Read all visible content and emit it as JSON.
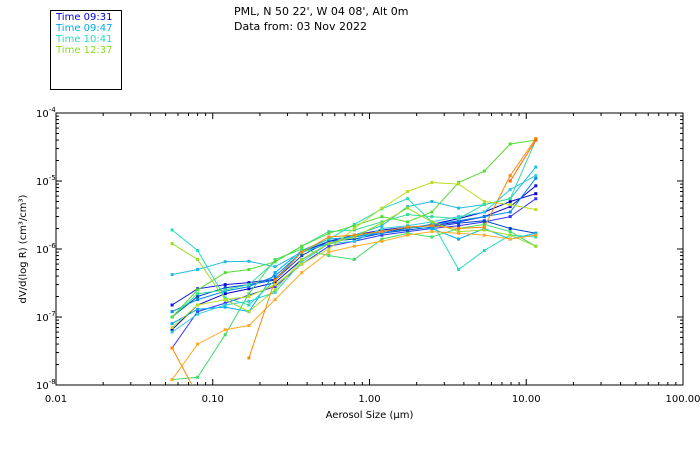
{
  "header": {
    "location": "PML, N 50 22', W 04 08', Alt 0m",
    "date": "Data from: 03 Nov 2022"
  },
  "legend": [
    {
      "label": "Time 09:31",
      "color": "#0000dd"
    },
    {
      "label": "Time 09:47",
      "color": "#00aaee"
    },
    {
      "label": "Time 10:41",
      "color": "#22ddbb"
    },
    {
      "label": "Time 12:37",
      "color": "#88dd22"
    }
  ],
  "chart_data": {
    "type": "line",
    "xlabel": "Aerosol Size (µm)",
    "ylabel": "dV/d(log R) (cm³/cm³)",
    "xscale": "log",
    "yscale": "log",
    "xlim": [
      0.01,
      100
    ],
    "ylim": [
      1e-08,
      0.0001
    ],
    "xticks": [
      {
        "value": 0.01,
        "label": "0.01"
      },
      {
        "value": 0.1,
        "label": "0.10"
      },
      {
        "value": 1,
        "label": "1.00"
      },
      {
        "value": 10,
        "label": "10.00"
      },
      {
        "value": 100,
        "label": "100.00"
      }
    ],
    "yticks": [
      {
        "value": 1e-08,
        "base": "10",
        "exp": "-8"
      },
      {
        "value": 1e-07,
        "base": "10",
        "exp": "-7"
      },
      {
        "value": 1e-06,
        "base": "10",
        "exp": "-6"
      },
      {
        "value": 1e-05,
        "base": "10",
        "exp": "-5"
      },
      {
        "value": 0.0001,
        "base": "10",
        "exp": "-4"
      }
    ],
    "x": [
      0.055,
      0.08,
      0.12,
      0.17,
      0.25,
      0.37,
      0.55,
      0.8,
      1.2,
      1.75,
      2.5,
      3.7,
      5.4,
      7.9,
      11.5
    ],
    "series": [
      {
        "color": "#0000cc",
        "values": [
          6.5e-08,
          1.5e-07,
          2.2e-07,
          2.6e-07,
          3.2e-07,
          7e-07,
          1.2e-06,
          1.5e-06,
          1.8e-06,
          2e-06,
          2.3e-06,
          2.8e-06,
          3.5e-06,
          5e-06,
          6.5e-06
        ]
      },
      {
        "color": "#1111dd",
        "values": [
          1.5e-07,
          2.6e-07,
          3e-07,
          3.2e-07,
          3.6e-07,
          9e-07,
          1.3e-06,
          1.6e-06,
          1.9e-06,
          2.1e-06,
          2.2e-06,
          2.5e-06,
          3e-06,
          4.2e-06,
          8.5e-06
        ]
      },
      {
        "color": "#3333ff",
        "values": [
          3.5e-08,
          1.2e-07,
          1.6e-07,
          2.1e-07,
          2.8e-07,
          6e-07,
          1.1e-06,
          1.3e-06,
          1.6e-06,
          1.8e-06,
          2e-06,
          2.2e-06,
          2.5e-06,
          3e-06,
          5.5e-06
        ]
      },
      {
        "color": "#0044cc",
        "values": [
          1e-07,
          2e-07,
          2.7e-07,
          3e-07,
          3.5e-07,
          8e-07,
          1.3e-06,
          1.4e-06,
          1.7e-06,
          1.9e-06,
          2.1e-06,
          2.4e-06,
          2.6e-06,
          2e-06,
          1.7e-06
        ]
      },
      {
        "color": "#0088ee",
        "values": [
          1.2e-07,
          1.8e-07,
          2.4e-07,
          2.8e-07,
          4e-07,
          9e-07,
          1.2e-06,
          1.5e-06,
          1.7e-06,
          2e-06,
          2.3e-06,
          2.6e-06,
          3e-06,
          3.5e-06,
          1.1e-05
        ]
      },
      {
        "color": "#00aaee",
        "values": [
          8e-08,
          1.3e-07,
          1.4e-07,
          1.2e-07,
          4.5e-07,
          9.5e-07,
          1.4e-06,
          1.5e-06,
          1.8e-06,
          2.1e-06,
          2e-06,
          1.4e-06,
          2e-06,
          1.4e-06,
          1.7e-06
        ]
      },
      {
        "color": "#22bbdd",
        "values": [
          4.2e-07,
          5e-07,
          6.5e-07,
          6.6e-07,
          5.5e-07,
          9e-07,
          1.2e-06,
          1.6e-06,
          2.2e-06,
          4.2e-06,
          5e-06,
          4e-06,
          4.5e-06,
          5.5e-06,
          1.6e-05
        ]
      },
      {
        "color": "#33ccdd",
        "values": [
          6e-08,
          1.1e-07,
          1.5e-07,
          1.7e-07,
          2.3e-07,
          6.5e-07,
          1.2e-06,
          1.3e-06,
          2e-06,
          2.2e-06,
          2.5e-06,
          3e-06,
          3.5e-06,
          7.5e-06,
          1.2e-05
        ]
      },
      {
        "color": "#22ddbb",
        "values": [
          1.9e-06,
          9.5e-07,
          1.9e-07,
          1.5e-07,
          3.5e-07,
          9e-07,
          1.4e-06,
          2.3e-06,
          3.9e-06,
          5.5e-06,
          2.5e-06,
          5e-07,
          9.5e-07,
          1.6e-06,
          1.5e-06
        ]
      },
      {
        "color": "#33dd99",
        "values": [
          1e-07,
          2.2e-07,
          2.5e-07,
          3e-07,
          6.5e-07,
          1.1e-06,
          1.8e-06,
          1.9e-06,
          2.5e-06,
          3.2e-06,
          3e-06,
          2.8e-06,
          4.5e-06,
          5.5e-06,
          4e-05
        ]
      },
      {
        "color": "#44dd66",
        "values": [
          1.2e-08,
          1.3e-08,
          5.5e-08,
          2.2e-07,
          7e-07,
          1e-06,
          8e-07,
          7e-07,
          1.4e-06,
          1.7e-06,
          1.5e-06,
          2e-06,
          2.3e-06,
          1.8e-06,
          1.1e-06
        ]
      },
      {
        "color": "#55dd33",
        "values": [
          1e-07,
          2.5e-07,
          4.5e-07,
          5e-07,
          6.5e-07,
          1.1e-06,
          1.7e-06,
          2.2e-06,
          3e-06,
          2.5e-06,
          3.5e-06,
          9.5e-06,
          1.4e-05,
          3.5e-05,
          4e-05
        ]
      },
      {
        "color": "#99dd22",
        "values": [
          1.2e-06,
          7e-07,
          1.8e-07,
          1.2e-07,
          2.5e-07,
          7e-07,
          1.2e-06,
          1.5e-06,
          2.4e-06,
          4e-06,
          2.5e-06,
          1.8e-06,
          1.9e-06,
          1.6e-06,
          1.1e-06
        ]
      },
      {
        "color": "#bbdd22",
        "values": [
          7e-08,
          1.5e-07,
          1.8e-07,
          2e-07,
          3e-07,
          6e-07,
          1e-06,
          2e-06,
          4e-06,
          7e-06,
          9.5e-06,
          9e-06,
          5e-06,
          4.5e-06,
          3.8e-06
        ]
      },
      {
        "color": "#ffaa22",
        "values": [
          1.2e-08,
          4e-08,
          6.5e-08,
          7.5e-08,
          1.8e-07,
          4.5e-07,
          9e-07,
          1.1e-06,
          1.3e-06,
          1.6e-06,
          1.8e-06,
          1.7e-06,
          1.6e-06,
          1.4e-06,
          1.6e-06
        ]
      },
      {
        "color": "#ff8800",
        "values": [
          3.5e-08,
          7e-09,
          null,
          2.5e-08,
          3.5e-07,
          9e-07,
          1.5e-06,
          1.6e-06,
          1.8e-06,
          2.1e-06,
          2.2e-06,
          2e-06,
          2.1e-06,
          1.2e-05,
          4.2e-05
        ]
      },
      {
        "color": "#ff6600",
        "values": [
          null,
          null,
          null,
          null,
          null,
          null,
          null,
          null,
          null,
          null,
          null,
          null,
          null,
          1e-05,
          4e-05
        ]
      }
    ]
  }
}
